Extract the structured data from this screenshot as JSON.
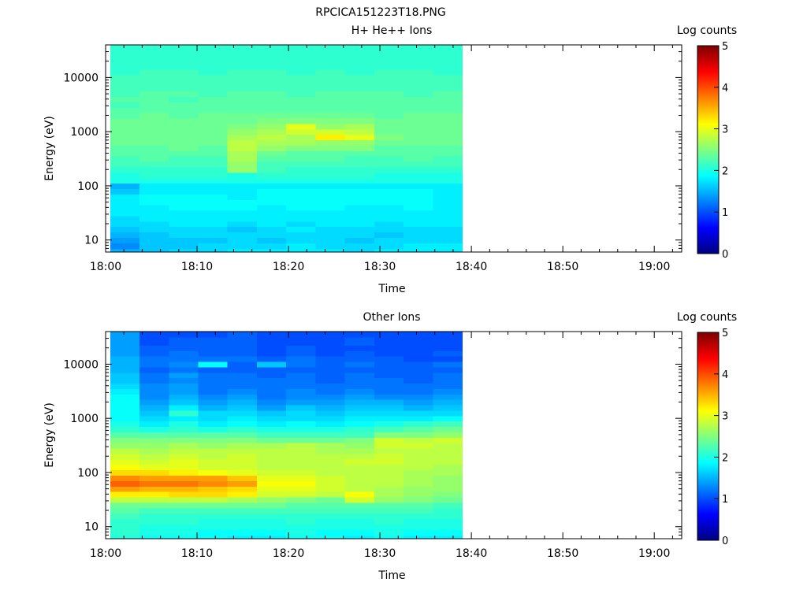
{
  "figure_title": "RPCICA151223T18.PNG",
  "chart_data": [
    {
      "type": "heatmap",
      "title": "H+ He++ Ions",
      "xlabel": "Time",
      "ylabel": "Energy (eV)",
      "x_tick_labels": [
        "18:00",
        "18:10",
        "18:20",
        "18:30",
        "18:40",
        "18:50",
        "19:00"
      ],
      "x_tick_minutes": [
        0,
        10,
        20,
        30,
        40,
        50,
        60
      ],
      "xlim_minutes": [
        0,
        63
      ],
      "y_scale": "log",
      "y_tick_labels": [
        "10",
        "100",
        "1000",
        "10000"
      ],
      "y_tick_values": [
        10,
        100,
        1000,
        10000
      ],
      "ylim": [
        6,
        40000
      ],
      "data_time_range_minutes": [
        0.5,
        39
      ],
      "time_columns": 12,
      "energy_bins_log10": [
        0.78,
        0.9,
        1.0,
        1.1,
        1.2,
        1.3,
        1.4,
        1.5,
        1.6,
        1.7,
        1.8,
        1.9,
        2.0,
        2.1,
        2.2,
        2.3,
        2.4,
        2.5,
        2.6,
        2.7,
        2.8,
        2.9,
        3.0,
        3.1,
        3.2,
        3.3,
        3.4,
        3.5,
        3.6,
        3.7,
        3.8,
        3.9,
        4.0,
        4.1,
        4.2,
        4.3,
        4.4,
        4.6
      ],
      "log_counts": [
        [
          1.5,
          1.6,
          1.7,
          1.7,
          1.8,
          1.8,
          1.8,
          1.8,
          1.7,
          1.8,
          1.8,
          1.8
        ],
        [
          1.3,
          1.6,
          1.6,
          1.7,
          1.7,
          1.7,
          1.8,
          1.7,
          1.7,
          1.7,
          1.8,
          1.8
        ],
        [
          1.4,
          1.6,
          1.6,
          1.6,
          1.7,
          1.6,
          1.7,
          1.7,
          1.6,
          1.7,
          1.7,
          1.7
        ],
        [
          1.5,
          1.6,
          1.7,
          1.7,
          1.7,
          1.7,
          1.7,
          1.7,
          1.7,
          1.6,
          1.7,
          1.7
        ],
        [
          1.6,
          1.7,
          1.7,
          1.7,
          1.6,
          1.7,
          1.8,
          1.7,
          1.7,
          1.7,
          1.7,
          1.7
        ],
        [
          1.7,
          1.7,
          1.8,
          1.8,
          1.7,
          1.8,
          1.7,
          1.8,
          1.8,
          1.7,
          1.8,
          1.8
        ],
        [
          1.7,
          1.8,
          1.8,
          1.8,
          1.8,
          1.8,
          1.8,
          1.8,
          1.8,
          1.8,
          1.8,
          1.8
        ],
        [
          1.8,
          1.8,
          1.8,
          1.8,
          1.8,
          1.8,
          1.8,
          1.8,
          1.8,
          1.8,
          1.8,
          1.8
        ],
        [
          1.8,
          1.8,
          1.9,
          1.9,
          1.9,
          1.8,
          1.9,
          1.9,
          1.8,
          1.8,
          1.9,
          1.8
        ],
        [
          1.8,
          1.9,
          1.9,
          1.9,
          1.9,
          1.9,
          1.9,
          1.9,
          1.9,
          1.9,
          1.9,
          1.8
        ],
        [
          1.8,
          1.9,
          1.9,
          1.9,
          1.8,
          1.9,
          1.9,
          1.9,
          1.9,
          1.9,
          1.9,
          1.8
        ],
        [
          1.6,
          1.8,
          1.8,
          1.8,
          1.8,
          1.9,
          1.9,
          1.9,
          1.9,
          1.9,
          1.9,
          1.8
        ],
        [
          1.5,
          1.8,
          1.8,
          1.8,
          1.8,
          1.8,
          1.8,
          1.8,
          1.8,
          1.8,
          1.8,
          1.8
        ],
        [
          2.0,
          2.0,
          2.0,
          2.0,
          2.0,
          2.0,
          2.0,
          2.0,
          2.0,
          2.0,
          2.0,
          2.0
        ],
        [
          2.0,
          2.1,
          2.1,
          2.1,
          2.0,
          2.1,
          2.1,
          2.1,
          2.1,
          2.0,
          2.0,
          2.0
        ],
        [
          2.1,
          2.1,
          2.1,
          2.1,
          2.6,
          2.2,
          2.1,
          2.1,
          2.1,
          2.1,
          2.1,
          2.1
        ],
        [
          2.2,
          2.2,
          2.2,
          2.2,
          2.6,
          2.2,
          2.2,
          2.2,
          2.2,
          2.2,
          2.2,
          2.2
        ],
        [
          2.2,
          2.3,
          2.2,
          2.2,
          2.7,
          2.3,
          2.3,
          2.3,
          2.2,
          2.2,
          2.3,
          2.2
        ],
        [
          2.3,
          2.3,
          2.3,
          2.3,
          2.7,
          2.4,
          2.3,
          2.3,
          2.3,
          2.3,
          2.3,
          2.3
        ],
        [
          2.3,
          2.3,
          2.4,
          2.3,
          2.8,
          2.6,
          2.5,
          2.5,
          2.5,
          2.3,
          2.3,
          2.3
        ],
        [
          2.4,
          2.4,
          2.4,
          2.4,
          2.8,
          2.7,
          2.7,
          2.6,
          2.6,
          2.4,
          2.4,
          2.4
        ],
        [
          2.4,
          2.4,
          2.4,
          2.4,
          2.7,
          2.8,
          2.7,
          3.2,
          3.0,
          2.5,
          2.4,
          2.4
        ],
        [
          2.4,
          2.4,
          2.4,
          2.4,
          2.6,
          2.7,
          2.9,
          2.9,
          2.8,
          2.4,
          2.4,
          2.4
        ],
        [
          2.4,
          2.4,
          2.4,
          2.4,
          2.5,
          2.6,
          3.0,
          2.6,
          2.7,
          2.4,
          2.4,
          2.4
        ],
        [
          2.4,
          2.4,
          2.4,
          2.4,
          2.4,
          2.5,
          2.5,
          2.5,
          2.5,
          2.4,
          2.4,
          2.4
        ],
        [
          2.3,
          2.4,
          2.3,
          2.4,
          2.4,
          2.4,
          2.4,
          2.4,
          2.4,
          2.3,
          2.4,
          2.4
        ],
        [
          2.3,
          2.3,
          2.3,
          2.3,
          2.3,
          2.3,
          2.3,
          2.3,
          2.3,
          2.3,
          2.3,
          2.3
        ],
        [
          2.2,
          2.3,
          2.3,
          2.3,
          2.3,
          2.3,
          2.3,
          2.3,
          2.3,
          2.3,
          2.3,
          2.3
        ],
        [
          2.3,
          2.3,
          2.2,
          2.3,
          2.3,
          2.3,
          2.3,
          2.3,
          2.3,
          2.3,
          2.3,
          2.3
        ],
        [
          2.2,
          2.3,
          2.3,
          2.2,
          2.3,
          2.3,
          2.2,
          2.3,
          2.3,
          2.3,
          2.2,
          2.3
        ],
        [
          2.2,
          2.2,
          2.2,
          2.2,
          2.2,
          2.2,
          2.2,
          2.2,
          2.2,
          2.2,
          2.2,
          2.2
        ],
        [
          2.2,
          2.2,
          2.2,
          2.2,
          2.2,
          2.2,
          2.2,
          2.2,
          2.2,
          2.2,
          2.2,
          2.2
        ],
        [
          2.2,
          2.2,
          2.2,
          2.2,
          2.2,
          2.2,
          2.2,
          2.2,
          2.2,
          2.2,
          2.2,
          2.2
        ],
        [
          2.1,
          2.2,
          2.2,
          2.1,
          2.2,
          2.2,
          2.1,
          2.2,
          2.1,
          2.2,
          2.2,
          2.1
        ],
        [
          2.1,
          2.1,
          2.1,
          2.1,
          2.1,
          2.1,
          2.1,
          2.1,
          2.1,
          2.1,
          2.1,
          2.1
        ],
        [
          2.1,
          2.1,
          2.1,
          2.1,
          2.1,
          2.1,
          2.1,
          2.1,
          2.1,
          2.1,
          2.1,
          2.1
        ],
        [
          2.1,
          2.1,
          2.1,
          2.1,
          2.1,
          2.1,
          2.1,
          2.1,
          2.1,
          2.1,
          2.1,
          2.1
        ],
        [
          2.1,
          2.1,
          2.1,
          2.1,
          2.1,
          2.1,
          2.1,
          2.1,
          2.1,
          2.1,
          2.1,
          2.1
        ]
      ],
      "colorbar": {
        "label": "Log counts",
        "ticks": [
          "0",
          "1",
          "2",
          "3",
          "4",
          "5"
        ],
        "range": [
          0,
          5
        ],
        "colormap": "jet"
      }
    },
    {
      "type": "heatmap",
      "title": "Other Ions",
      "xlabel": "Time",
      "ylabel": "Energy (eV)",
      "x_tick_labels": [
        "18:00",
        "18:10",
        "18:20",
        "18:30",
        "18:40",
        "18:50",
        "19:00"
      ],
      "x_tick_minutes": [
        0,
        10,
        20,
        30,
        40,
        50,
        60
      ],
      "xlim_minutes": [
        0,
        63
      ],
      "y_scale": "log",
      "y_tick_labels": [
        "10",
        "100",
        "1000",
        "10000"
      ],
      "y_tick_values": [
        10,
        100,
        1000,
        10000
      ],
      "ylim": [
        6,
        40000
      ],
      "data_time_range_minutes": [
        0.5,
        39
      ],
      "time_columns": 12,
      "energy_bins_log10": [
        0.78,
        0.9,
        1.0,
        1.1,
        1.2,
        1.3,
        1.4,
        1.5,
        1.6,
        1.7,
        1.8,
        1.9,
        2.0,
        2.1,
        2.2,
        2.3,
        2.4,
        2.5,
        2.6,
        2.7,
        2.8,
        2.9,
        3.0,
        3.1,
        3.2,
        3.3,
        3.4,
        3.5,
        3.6,
        3.7,
        3.8,
        3.9,
        4.0,
        4.1,
        4.2,
        4.3,
        4.4,
        4.6
      ],
      "log_counts": [
        [
          2.0,
          1.9,
          1.9,
          1.9,
          1.8,
          1.8,
          1.9,
          1.9,
          1.8,
          1.9,
          1.8,
          1.8
        ],
        [
          2.1,
          2.0,
          2.0,
          1.9,
          1.9,
          1.9,
          2.0,
          1.9,
          1.9,
          2.0,
          1.9,
          1.9
        ],
        [
          2.1,
          2.0,
          2.0,
          2.0,
          2.0,
          2.0,
          2.0,
          2.0,
          2.0,
          2.0,
          2.0,
          2.0
        ],
        [
          2.1,
          2.1,
          2.1,
          2.0,
          2.0,
          2.0,
          2.1,
          2.0,
          2.0,
          2.1,
          2.0,
          2.0
        ],
        [
          2.2,
          2.1,
          2.1,
          2.1,
          2.1,
          2.1,
          2.1,
          2.1,
          2.1,
          2.1,
          2.1,
          2.1
        ],
        [
          2.3,
          2.2,
          2.2,
          2.2,
          2.2,
          2.2,
          2.2,
          2.2,
          2.2,
          2.2,
          2.2,
          2.1
        ],
        [
          2.4,
          2.4,
          2.4,
          2.4,
          2.4,
          2.4,
          2.3,
          2.3,
          2.3,
          2.3,
          2.3,
          2.2
        ],
        [
          2.8,
          2.8,
          2.8,
          2.8,
          2.7,
          2.6,
          2.5,
          2.4,
          2.9,
          2.6,
          2.5,
          2.4
        ],
        [
          3.2,
          3.2,
          3.3,
          3.3,
          3.2,
          2.9,
          2.9,
          2.8,
          3.1,
          2.7,
          2.6,
          2.5
        ],
        [
          3.6,
          3.5,
          3.5,
          3.4,
          3.3,
          3.0,
          3.0,
          2.9,
          2.8,
          2.7,
          2.6,
          2.6
        ],
        [
          3.9,
          3.8,
          3.8,
          3.7,
          3.6,
          3.1,
          3.1,
          2.9,
          2.8,
          2.8,
          2.7,
          2.6
        ],
        [
          3.7,
          3.6,
          3.6,
          3.6,
          3.4,
          3.0,
          3.0,
          2.9,
          2.8,
          2.8,
          2.7,
          2.6
        ],
        [
          3.3,
          3.3,
          3.2,
          3.1,
          3.0,
          2.9,
          2.9,
          2.8,
          2.8,
          2.8,
          2.7,
          2.7
        ],
        [
          3.1,
          3.0,
          3.0,
          2.9,
          2.9,
          2.8,
          2.8,
          2.8,
          2.8,
          2.8,
          2.8,
          2.7
        ],
        [
          3.0,
          2.9,
          3.0,
          2.9,
          2.9,
          2.8,
          2.8,
          2.8,
          2.9,
          2.9,
          2.8,
          2.8
        ],
        [
          2.9,
          2.8,
          2.9,
          2.8,
          2.9,
          2.8,
          2.8,
          2.8,
          2.8,
          2.9,
          2.8,
          2.8
        ],
        [
          2.8,
          2.7,
          2.8,
          2.8,
          2.8,
          2.8,
          2.8,
          2.7,
          2.7,
          2.8,
          2.8,
          2.8
        ],
        [
          2.6,
          2.6,
          2.7,
          2.6,
          2.7,
          2.7,
          2.8,
          2.7,
          2.6,
          2.9,
          2.9,
          2.8
        ],
        [
          2.5,
          2.5,
          2.5,
          2.5,
          2.5,
          2.4,
          2.4,
          2.4,
          2.5,
          2.9,
          2.8,
          2.9
        ],
        [
          2.3,
          2.3,
          2.3,
          2.3,
          2.3,
          2.2,
          2.2,
          2.2,
          2.2,
          2.5,
          2.5,
          2.6
        ],
        [
          2.1,
          2.0,
          2.1,
          2.0,
          2.1,
          2.0,
          2.0,
          2.0,
          2.1,
          2.2,
          2.3,
          2.4
        ],
        [
          2.0,
          1.8,
          2.0,
          1.8,
          1.9,
          1.8,
          1.9,
          1.8,
          1.9,
          2.0,
          2.1,
          2.2
        ],
        [
          1.9,
          1.7,
          1.8,
          1.7,
          1.8,
          1.7,
          1.7,
          1.7,
          1.8,
          1.8,
          1.8,
          1.9
        ],
        [
          1.9,
          1.6,
          2.1,
          1.7,
          1.7,
          1.6,
          1.7,
          1.6,
          1.7,
          1.7,
          1.7,
          1.7
        ],
        [
          1.9,
          1.5,
          1.8,
          1.5,
          1.6,
          1.4,
          1.6,
          1.5,
          1.6,
          1.6,
          1.5,
          1.6
        ],
        [
          1.9,
          1.4,
          1.6,
          1.4,
          1.5,
          1.3,
          1.4,
          1.4,
          1.5,
          1.5,
          1.4,
          1.5
        ],
        [
          1.9,
          1.3,
          1.5,
          1.3,
          1.4,
          1.2,
          1.3,
          1.3,
          1.4,
          1.3,
          1.3,
          1.4
        ],
        [
          1.8,
          1.3,
          1.4,
          1.2,
          1.3,
          1.2,
          1.3,
          1.2,
          1.3,
          1.2,
          1.2,
          1.3
        ],
        [
          1.7,
          1.3,
          1.4,
          1.2,
          1.2,
          1.2,
          1.2,
          1.2,
          1.2,
          1.2,
          1.2,
          1.2
        ],
        [
          1.6,
          1.2,
          1.3,
          1.2,
          1.2,
          1.2,
          1.2,
          1.1,
          1.2,
          1.2,
          1.1,
          1.2
        ],
        [
          1.6,
          1.2,
          1.4,
          1.2,
          1.2,
          1.1,
          1.2,
          1.1,
          1.2,
          1.1,
          1.1,
          1.2
        ],
        [
          1.5,
          1.1,
          1.2,
          1.1,
          1.1,
          1.1,
          1.1,
          1.1,
          1.1,
          1.1,
          1.1,
          1.1
        ],
        [
          1.5,
          1.2,
          1.3,
          1.9,
          1.1,
          1.6,
          1.2,
          1.1,
          1.2,
          1.1,
          1.1,
          1.2
        ],
        [
          1.5,
          1.2,
          1.2,
          1.2,
          1.2,
          1.1,
          1.2,
          1.1,
          1.1,
          1.1,
          1.0,
          1.0
        ],
        [
          1.4,
          1.1,
          1.2,
          1.1,
          1.1,
          1.0,
          1.1,
          1.0,
          1.1,
          1.0,
          1.0,
          1.1
        ],
        [
          1.4,
          1.1,
          1.1,
          1.1,
          1.1,
          1.0,
          1.1,
          1.0,
          1.0,
          1.0,
          1.0,
          1.0
        ],
        [
          1.4,
          1.0,
          1.1,
          1.1,
          1.1,
          1.0,
          1.0,
          1.0,
          1.1,
          1.0,
          1.0,
          1.0
        ],
        [
          1.4,
          1.0,
          1.0,
          1.0,
          1.1,
          1.0,
          1.0,
          1.0,
          1.0,
          1.0,
          1.0,
          1.0
        ]
      ],
      "colorbar": {
        "label": "Log counts",
        "ticks": [
          "0",
          "1",
          "2",
          "3",
          "4",
          "5"
        ],
        "range": [
          0,
          5
        ],
        "colormap": "jet"
      }
    }
  ]
}
